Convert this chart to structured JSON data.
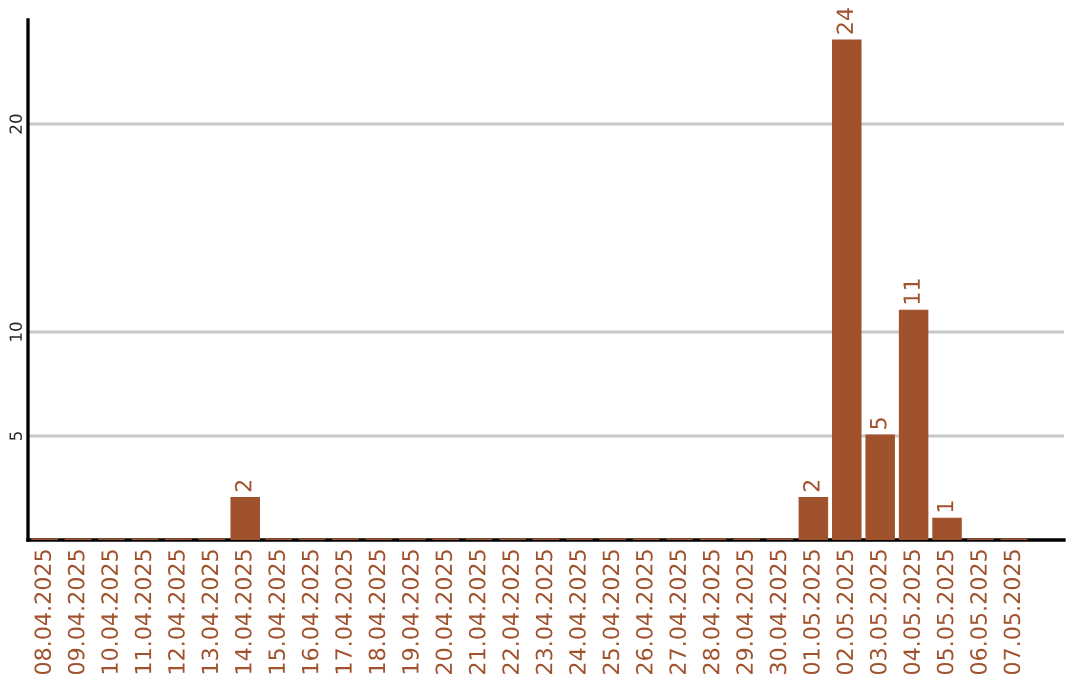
{
  "chart_data": {
    "type": "bar",
    "categories": [
      "08.04.2025",
      "09.04.2025",
      "10.04.2025",
      "11.04.2025",
      "12.04.2025",
      "13.04.2025",
      "14.04.2025",
      "15.04.2025",
      "16.04.2025",
      "17.04.2025",
      "18.04.2025",
      "19.04.2025",
      "20.04.2025",
      "21.04.2025",
      "22.04.2025",
      "23.04.2025",
      "24.04.2025",
      "25.04.2025",
      "26.04.2025",
      "27.04.2025",
      "28.04.2025",
      "29.04.2025",
      "30.04.2025",
      "01.05.2025",
      "02.05.2025",
      "03.05.2025",
      "04.05.2025",
      "05.05.2025",
      "06.05.2025",
      "07.05.2025"
    ],
    "values": [
      0,
      0,
      0,
      0,
      0,
      0,
      2,
      0,
      0,
      0,
      0,
      0,
      0,
      0,
      0,
      0,
      0,
      0,
      0,
      0,
      0,
      0,
      0,
      2,
      24,
      5,
      11,
      1,
      0,
      0
    ],
    "value_labels": [
      null,
      null,
      null,
      null,
      null,
      null,
      "2",
      null,
      null,
      null,
      null,
      null,
      null,
      null,
      null,
      null,
      null,
      null,
      null,
      null,
      null,
      null,
      null,
      "2",
      "24",
      "5",
      "11",
      "1",
      null,
      null
    ],
    "color": "#a0522d",
    "ylim": [
      0,
      25
    ],
    "yticks": [
      5,
      10,
      20
    ],
    "grid": "y"
  }
}
